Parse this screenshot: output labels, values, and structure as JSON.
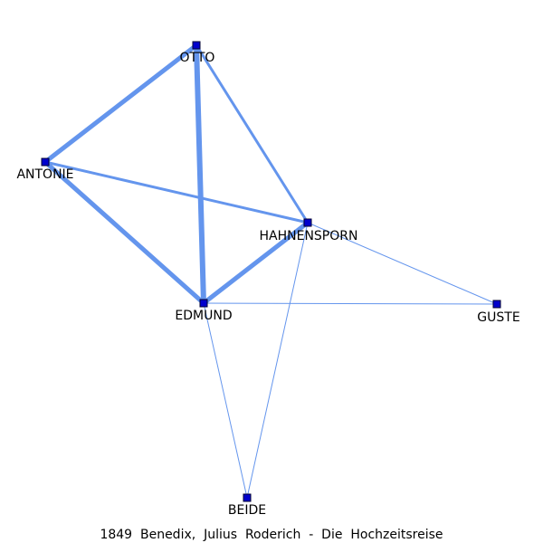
{
  "caption": "1849  Benedix,  Julius  Roderich  -  Die  Hochzeitsreise",
  "colors": {
    "edge": "#6495ED",
    "node_fill": "#0000CD",
    "node_stroke": "#000033",
    "label": "#000000"
  },
  "nodes": [
    {
      "id": "otto",
      "label": "OTTO"
    },
    {
      "id": "antonie",
      "label": "ANTONIE"
    },
    {
      "id": "hahnensporn",
      "label": "HAHNENSPORN"
    },
    {
      "id": "edmund",
      "label": "EDMUND"
    },
    {
      "id": "guste",
      "label": "GUSTE"
    },
    {
      "id": "beide",
      "label": "BEIDE"
    }
  ],
  "edges": [
    {
      "source": "otto",
      "target": "edmund",
      "weight": 6
    },
    {
      "source": "otto",
      "target": "antonie",
      "weight": 5
    },
    {
      "source": "antonie",
      "target": "edmund",
      "weight": 5
    },
    {
      "source": "hahnensporn",
      "target": "edmund",
      "weight": 5
    },
    {
      "source": "antonie",
      "target": "hahnensporn",
      "weight": 3
    },
    {
      "source": "otto",
      "target": "hahnensporn",
      "weight": 3
    },
    {
      "source": "hahnensporn",
      "target": "guste",
      "weight": 1
    },
    {
      "source": "edmund",
      "target": "guste",
      "weight": 1
    },
    {
      "source": "edmund",
      "target": "beide",
      "weight": 1
    },
    {
      "source": "hahnensporn",
      "target": "beide",
      "weight": 1
    }
  ]
}
